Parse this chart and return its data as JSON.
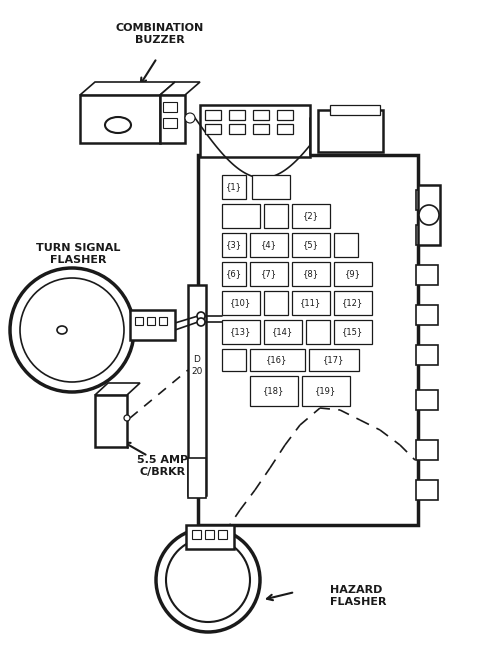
{
  "bg_color": "#ffffff",
  "line_color": "#1a1a1a",
  "fig_width": 5.0,
  "fig_height": 6.63,
  "dpi": 100,
  "labels": {
    "combination_buzzer": [
      "COMBINATION",
      "BUZZER"
    ],
    "turn_signal_flasher": [
      "TURN SIGNAL",
      "FLASHER"
    ],
    "cbrkr": [
      "5.5 AMP",
      "C/BRKR"
    ],
    "hazard_flasher": [
      "HAZARD",
      "FLASHER"
    ]
  }
}
